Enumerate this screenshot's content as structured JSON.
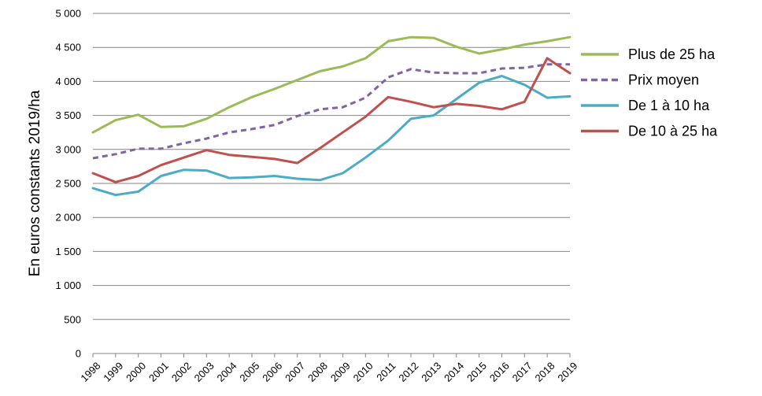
{
  "chart_data": {
    "type": "line",
    "title": "",
    "xlabel": "",
    "ylabel": "En euros constants 2019/ha",
    "ylim": [
      0,
      5000
    ],
    "y_ticks": [
      "0",
      "500",
      "1 000",
      "1 500",
      "2 000",
      "2 500",
      "3 000",
      "3 500",
      "4 000",
      "4 500",
      "5 000"
    ],
    "grid": "horizontal",
    "legend_position": "right",
    "x": [
      "1998",
      "1999",
      "2000",
      "2001",
      "2002",
      "2003",
      "2004",
      "2005",
      "2006",
      "2007",
      "2008",
      "2009",
      "2010",
      "2011",
      "2012",
      "2013",
      "2014",
      "2015",
      "2016",
      "2017",
      "2018",
      "2019"
    ],
    "series": [
      {
        "name": "Plus de 25 ha",
        "color": "#9BBB59",
        "dashed": false,
        "values": [
          3250,
          3430,
          3510,
          3330,
          3340,
          3450,
          3620,
          3770,
          3890,
          4020,
          4150,
          4220,
          4340,
          4590,
          4650,
          4640,
          4510,
          4410,
          4470,
          4540,
          4590,
          4650
        ]
      },
      {
        "name": "Prix moyen",
        "color": "#8064A2",
        "dashed": true,
        "values": [
          2870,
          2930,
          3010,
          3010,
          3090,
          3160,
          3250,
          3300,
          3360,
          3490,
          3590,
          3620,
          3760,
          4060,
          4180,
          4130,
          4120,
          4120,
          4190,
          4200,
          4250,
          4250
        ]
      },
      {
        "name": "De 1 à 10 ha",
        "color": "#4BACC6",
        "dashed": false,
        "values": [
          2430,
          2330,
          2380,
          2610,
          2700,
          2690,
          2580,
          2590,
          2610,
          2570,
          2550,
          2650,
          2880,
          3130,
          3450,
          3500,
          3740,
          3980,
          4080,
          3950,
          3760,
          3780
        ]
      },
      {
        "name": "De 10 à 25 ha",
        "color": "#C0504D",
        "dashed": false,
        "values": [
          2650,
          2520,
          2610,
          2770,
          2880,
          2990,
          2920,
          2890,
          2860,
          2800,
          3020,
          3250,
          3480,
          3770,
          3700,
          3620,
          3670,
          3640,
          3590,
          3700,
          4340,
          4120
        ]
      }
    ]
  }
}
